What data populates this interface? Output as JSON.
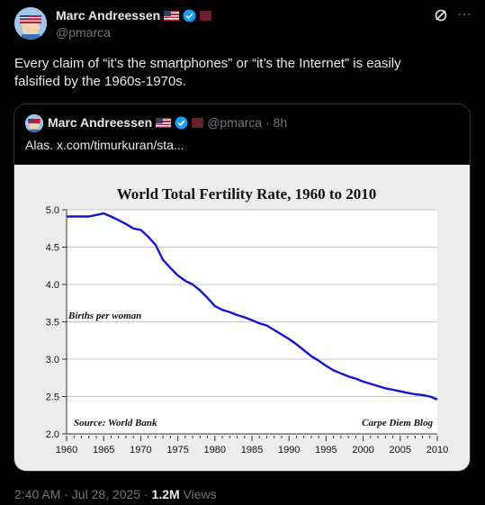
{
  "tweet": {
    "author_name": "Marc Andreessen",
    "author_handle": "@pmarca",
    "text": "Every claim of “it’s the smartphones” or “it’s the Internet” is easily falsified by the 1960s-1970s.",
    "timestamp": "2:40 AM · Jul 28, 2025 · ",
    "views_count": "1.2M",
    "views_label": " Views"
  },
  "quote": {
    "author_name": "Marc Andreessen",
    "handle_time": "@pmarca · 8h",
    "text": "Alas. x.com/timurkuran/sta..."
  },
  "icons": {
    "verified": "verified-badge-icon",
    "flag": "us-flag-icon",
    "affiliate": "affiliate-badge-icon",
    "grok": "grok-icon",
    "more": "more-icon"
  },
  "colors": {
    "background": "#000000",
    "text": "#e7e9ea",
    "muted": "#71767b",
    "verified": "#1d9bf0",
    "chart_line": "#1414c8"
  },
  "chart_data": {
    "type": "line",
    "title": "World Total Fertility Rate, 1960 to 2010",
    "ylabel": "Births per woman",
    "source": "Source: World Bank",
    "credit": "Carpe Diem Blog",
    "xlim": [
      1960,
      2010
    ],
    "ylim": [
      2.0,
      5.0
    ],
    "x_ticks": [
      1960,
      1965,
      1970,
      1975,
      1980,
      1985,
      1990,
      1995,
      2000,
      2005,
      2010
    ],
    "y_ticks": [
      "2.0",
      "2.5",
      "3.0",
      "3.5",
      "4.0",
      "4.5",
      "5.0"
    ],
    "grid": "horizontal",
    "series": [
      {
        "x": [
          1960,
          1961,
          1962,
          1963,
          1964,
          1965,
          1966,
          1967,
          1968,
          1969,
          1970,
          1971,
          1972,
          1973,
          1974,
          1975,
          1976,
          1977,
          1978,
          1979,
          1980,
          1981,
          1982,
          1983,
          1984,
          1985,
          1986,
          1987,
          1988,
          1989,
          1990,
          1991,
          1992,
          1993,
          1994,
          1995,
          1996,
          1997,
          1998,
          1999,
          2000,
          2001,
          2002,
          2003,
          2004,
          2005,
          2006,
          2007,
          2008,
          2009,
          2010
        ],
        "values": [
          4.91,
          4.91,
          4.91,
          4.91,
          4.93,
          4.95,
          4.91,
          4.86,
          4.81,
          4.75,
          4.73,
          4.64,
          4.53,
          4.33,
          4.22,
          4.12,
          4.05,
          4.0,
          3.92,
          3.82,
          3.71,
          3.66,
          3.63,
          3.59,
          3.56,
          3.52,
          3.48,
          3.45,
          3.39,
          3.33,
          3.27,
          3.2,
          3.12,
          3.04,
          2.98,
          2.91,
          2.85,
          2.81,
          2.77,
          2.74,
          2.7,
          2.67,
          2.64,
          2.61,
          2.59,
          2.57,
          2.55,
          2.53,
          2.52,
          2.5,
          2.46
        ]
      }
    ]
  }
}
